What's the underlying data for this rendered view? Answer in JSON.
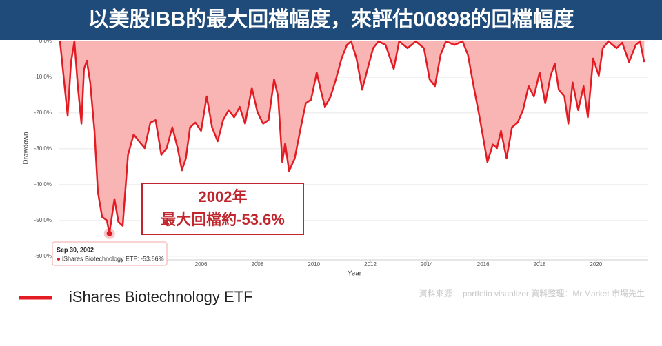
{
  "chart_data": {
    "type": "area",
    "title": "以美股IBB的最大回檔幅度，來評估00898的回檔幅度",
    "xlabel": "Year",
    "ylabel": "Drawdown",
    "x": [
      2001.0,
      2001.27,
      2001.39,
      2001.51,
      2001.63,
      2001.76,
      2001.85,
      2001.95,
      2002.07,
      2002.22,
      2002.34,
      2002.49,
      2002.66,
      2002.75,
      2002.93,
      2003.07,
      2003.22,
      2003.41,
      2003.61,
      2003.8,
      2004.0,
      2004.2,
      2004.39,
      2004.59,
      2004.78,
      2004.98,
      2005.17,
      2005.32,
      2005.46,
      2005.61,
      2005.8,
      2006.0,
      2006.2,
      2006.39,
      2006.59,
      2006.78,
      2006.98,
      2007.17,
      2007.37,
      2007.56,
      2007.8,
      2008.0,
      2008.2,
      2008.39,
      2008.59,
      2008.73,
      2008.88,
      2008.98,
      2009.12,
      2009.32,
      2009.51,
      2009.71,
      2009.9,
      2010.1,
      2010.24,
      2010.39,
      2010.59,
      2010.78,
      2010.98,
      2011.17,
      2011.32,
      2011.51,
      2011.71,
      2011.9,
      2012.1,
      2012.29,
      2012.54,
      2012.83,
      2013.02,
      2013.32,
      2013.61,
      2013.9,
      2014.1,
      2014.29,
      2014.49,
      2014.68,
      2014.98,
      2015.27,
      2015.46,
      2015.66,
      2015.85,
      2016.0,
      2016.15,
      2016.34,
      2016.49,
      2016.63,
      2016.83,
      2017.02,
      2017.22,
      2017.41,
      2017.61,
      2017.8,
      2018.0,
      2018.2,
      2018.39,
      2018.54,
      2018.68,
      2018.88,
      2019.02,
      2019.17,
      2019.37,
      2019.56,
      2019.71,
      2019.9,
      2020.1,
      2020.24,
      2020.44,
      2020.73,
      2020.93,
      2021.17,
      2021.41,
      2021.56,
      2021.71
    ],
    "series": [
      {
        "name": "iShares Biotechnology ETF",
        "color": "#e31b23",
        "fill": "#f9b4b4",
        "values": [
          0,
          -20.8,
          -5.8,
          0,
          -12.5,
          -23,
          -7.7,
          -5.4,
          -11.5,
          -25,
          -42,
          -49,
          -50,
          -53.66,
          -44,
          -50.4,
          -51.5,
          -31.7,
          -26,
          -27.9,
          -29.8,
          -22.7,
          -22,
          -31.7,
          -29.8,
          -24,
          -29.8,
          -36,
          -32.7,
          -24,
          -22.7,
          -25,
          -15.4,
          -24,
          -27.9,
          -22,
          -19.2,
          -21.2,
          -18.3,
          -23,
          -13,
          -19.8,
          -23,
          -22,
          -10.6,
          -15.4,
          -33.7,
          -28.5,
          -36.2,
          -32.7,
          -25,
          -17.3,
          -16.3,
          -8.7,
          -13.5,
          -18.3,
          -15.4,
          -10.6,
          -4.8,
          -1,
          0,
          -4.8,
          -13.5,
          -7.7,
          -1.9,
          0,
          -1,
          -7.7,
          0,
          -1.9,
          0,
          -1.9,
          -10.6,
          -12.5,
          -3.8,
          0,
          -1,
          0,
          -3.8,
          -12.5,
          -20.2,
          -26.9,
          -33.7,
          -28.8,
          -29.8,
          -25,
          -32.7,
          -24,
          -22.7,
          -19.2,
          -12.5,
          -15.4,
          -8.7,
          -17.3,
          -9.6,
          -6.2,
          -13.5,
          -15.4,
          -23,
          -11.5,
          -19.2,
          -12.5,
          -21.2,
          -4.8,
          -9.6,
          -1.9,
          0,
          -1.9,
          -0.4,
          -5.8,
          -1,
          0,
          -5.8
        ]
      }
    ],
    "xlim": [
      2000.95,
      2021.85
    ],
    "ylim": [
      -61,
      0
    ],
    "xticks": [
      2006,
      2008,
      2010,
      2012,
      2014,
      2016,
      2018,
      2020
    ],
    "yticks": [
      {
        "value": 0,
        "label": "0.0%"
      },
      {
        "value": -10,
        "label": "-10.0%"
      },
      {
        "value": -20,
        "label": "-20.0%"
      },
      {
        "value": -30,
        "label": "-30.0%"
      },
      {
        "value": -40,
        "label": "-40.0%"
      },
      {
        "value": -50,
        "label": "-50.0%"
      },
      {
        "value": -60,
        "label": "-60.0%"
      }
    ],
    "grid": true,
    "annotation": {
      "line1": "2002年",
      "line2": "最大回檔約-53.6%"
    },
    "tooltip": {
      "title": "Sep 30, 2002",
      "label": "iShares Biotechnology ETF: -53.66%"
    },
    "source": "資料來源： portfolio visualizer  資料整理：Mr.Market 市場先生"
  }
}
